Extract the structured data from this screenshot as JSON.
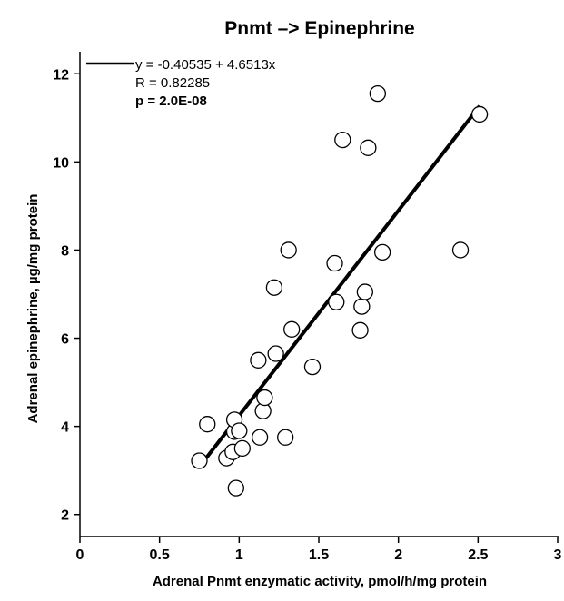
{
  "chart_data": {
    "type": "scatter",
    "title": "Pnmt –> Epinephrine",
    "xlabel": "Adrenal Pnmt enzymatic activity, pmol/h/mg protein",
    "ylabel": "Adrenal epinephrine, µg/mg protein",
    "xlim": [
      0,
      3
    ],
    "ylim": [
      1.5,
      12.5
    ],
    "x_ticks": [
      0,
      0.5,
      1,
      1.5,
      2,
      2.5,
      3
    ],
    "x_tick_labels": [
      "0",
      "0.5",
      "1",
      "1.5",
      "2",
      "2.5",
      "3"
    ],
    "y_ticks": [
      2,
      4,
      6,
      8,
      10,
      12
    ],
    "y_tick_labels": [
      "2",
      "4",
      "6",
      "8",
      "10",
      "12"
    ],
    "grid": false,
    "legend": {
      "placement": "top-left",
      "equation": "y = -0.40535 + 4.6513x",
      "r_text": "R = 0.82285",
      "p_text": "p = 2.0E-08"
    },
    "fit_line": {
      "intercept": -0.40535,
      "slope": 4.6513,
      "x_range": [
        0.76,
        2.51
      ]
    },
    "points": [
      {
        "x": 0.75,
        "y": 3.22
      },
      {
        "x": 0.8,
        "y": 4.05
      },
      {
        "x": 0.92,
        "y": 3.28
      },
      {
        "x": 0.96,
        "y": 3.42
      },
      {
        "x": 0.97,
        "y": 3.88
      },
      {
        "x": 0.97,
        "y": 4.15
      },
      {
        "x": 0.98,
        "y": 2.6
      },
      {
        "x": 1.0,
        "y": 3.9
      },
      {
        "x": 1.02,
        "y": 3.5
      },
      {
        "x": 1.12,
        "y": 5.5
      },
      {
        "x": 1.13,
        "y": 3.75
      },
      {
        "x": 1.15,
        "y": 4.35
      },
      {
        "x": 1.16,
        "y": 4.65
      },
      {
        "x": 1.22,
        "y": 7.15
      },
      {
        "x": 1.23,
        "y": 5.65
      },
      {
        "x": 1.29,
        "y": 3.75
      },
      {
        "x": 1.31,
        "y": 8.0
      },
      {
        "x": 1.33,
        "y": 6.2
      },
      {
        "x": 1.46,
        "y": 5.35
      },
      {
        "x": 1.6,
        "y": 7.7
      },
      {
        "x": 1.61,
        "y": 6.82
      },
      {
        "x": 1.65,
        "y": 10.5
      },
      {
        "x": 1.76,
        "y": 6.18
      },
      {
        "x": 1.77,
        "y": 6.72
      },
      {
        "x": 1.79,
        "y": 7.05
      },
      {
        "x": 1.81,
        "y": 10.32
      },
      {
        "x": 1.87,
        "y": 11.55
      },
      {
        "x": 1.9,
        "y": 7.95
      },
      {
        "x": 2.39,
        "y": 8.0
      },
      {
        "x": 2.51,
        "y": 11.08
      }
    ]
  }
}
